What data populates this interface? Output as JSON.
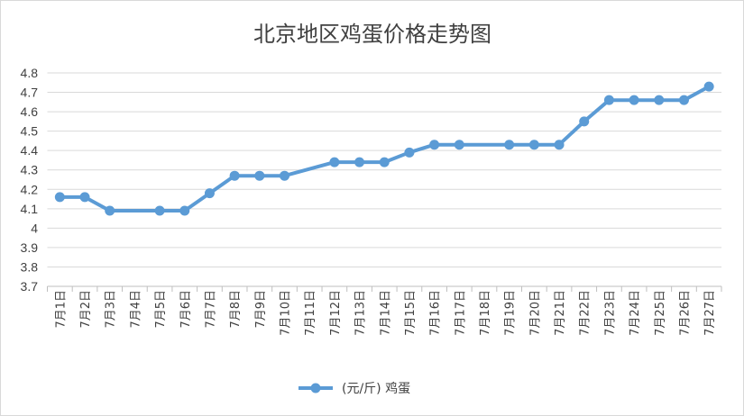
{
  "chart_data": {
    "type": "line",
    "title": "北京地区鸡蛋价格走势图",
    "xlabel": "",
    "ylabel": "",
    "ylim": [
      3.7,
      4.8
    ],
    "y_ticks": [
      "3.7",
      "3.8",
      "3.9",
      "4",
      "4.1",
      "4.2",
      "4.3",
      "4.4",
      "4.5",
      "4.6",
      "4.7",
      "4.8"
    ],
    "grid": true,
    "legend_position": "bottom",
    "categories": [
      "7月1日",
      "7月2日",
      "7月3日",
      "7月4日",
      "7月5日",
      "7月6日",
      "7月7日",
      "7月8日",
      "7月9日",
      "7月10日",
      "7月11日",
      "7月12日",
      "7月13日",
      "7月14日",
      "7月15日",
      "7月16日",
      "7月17日",
      "7月18日",
      "7月19日",
      "7月20日",
      "7月21日",
      "7月22日",
      "7月23日",
      "7月24日",
      "7月25日",
      "7月26日",
      "7月27日"
    ],
    "series": [
      {
        "name": "(元/斤) 鸡蛋",
        "color": "#5b9bd5",
        "values": [
          4.16,
          4.16,
          4.09,
          null,
          4.09,
          4.09,
          4.18,
          4.27,
          4.27,
          4.27,
          null,
          4.34,
          4.34,
          4.34,
          4.39,
          4.43,
          4.43,
          null,
          4.43,
          4.43,
          4.43,
          4.55,
          4.66,
          4.66,
          4.66,
          4.66,
          4.73
        ]
      }
    ]
  }
}
